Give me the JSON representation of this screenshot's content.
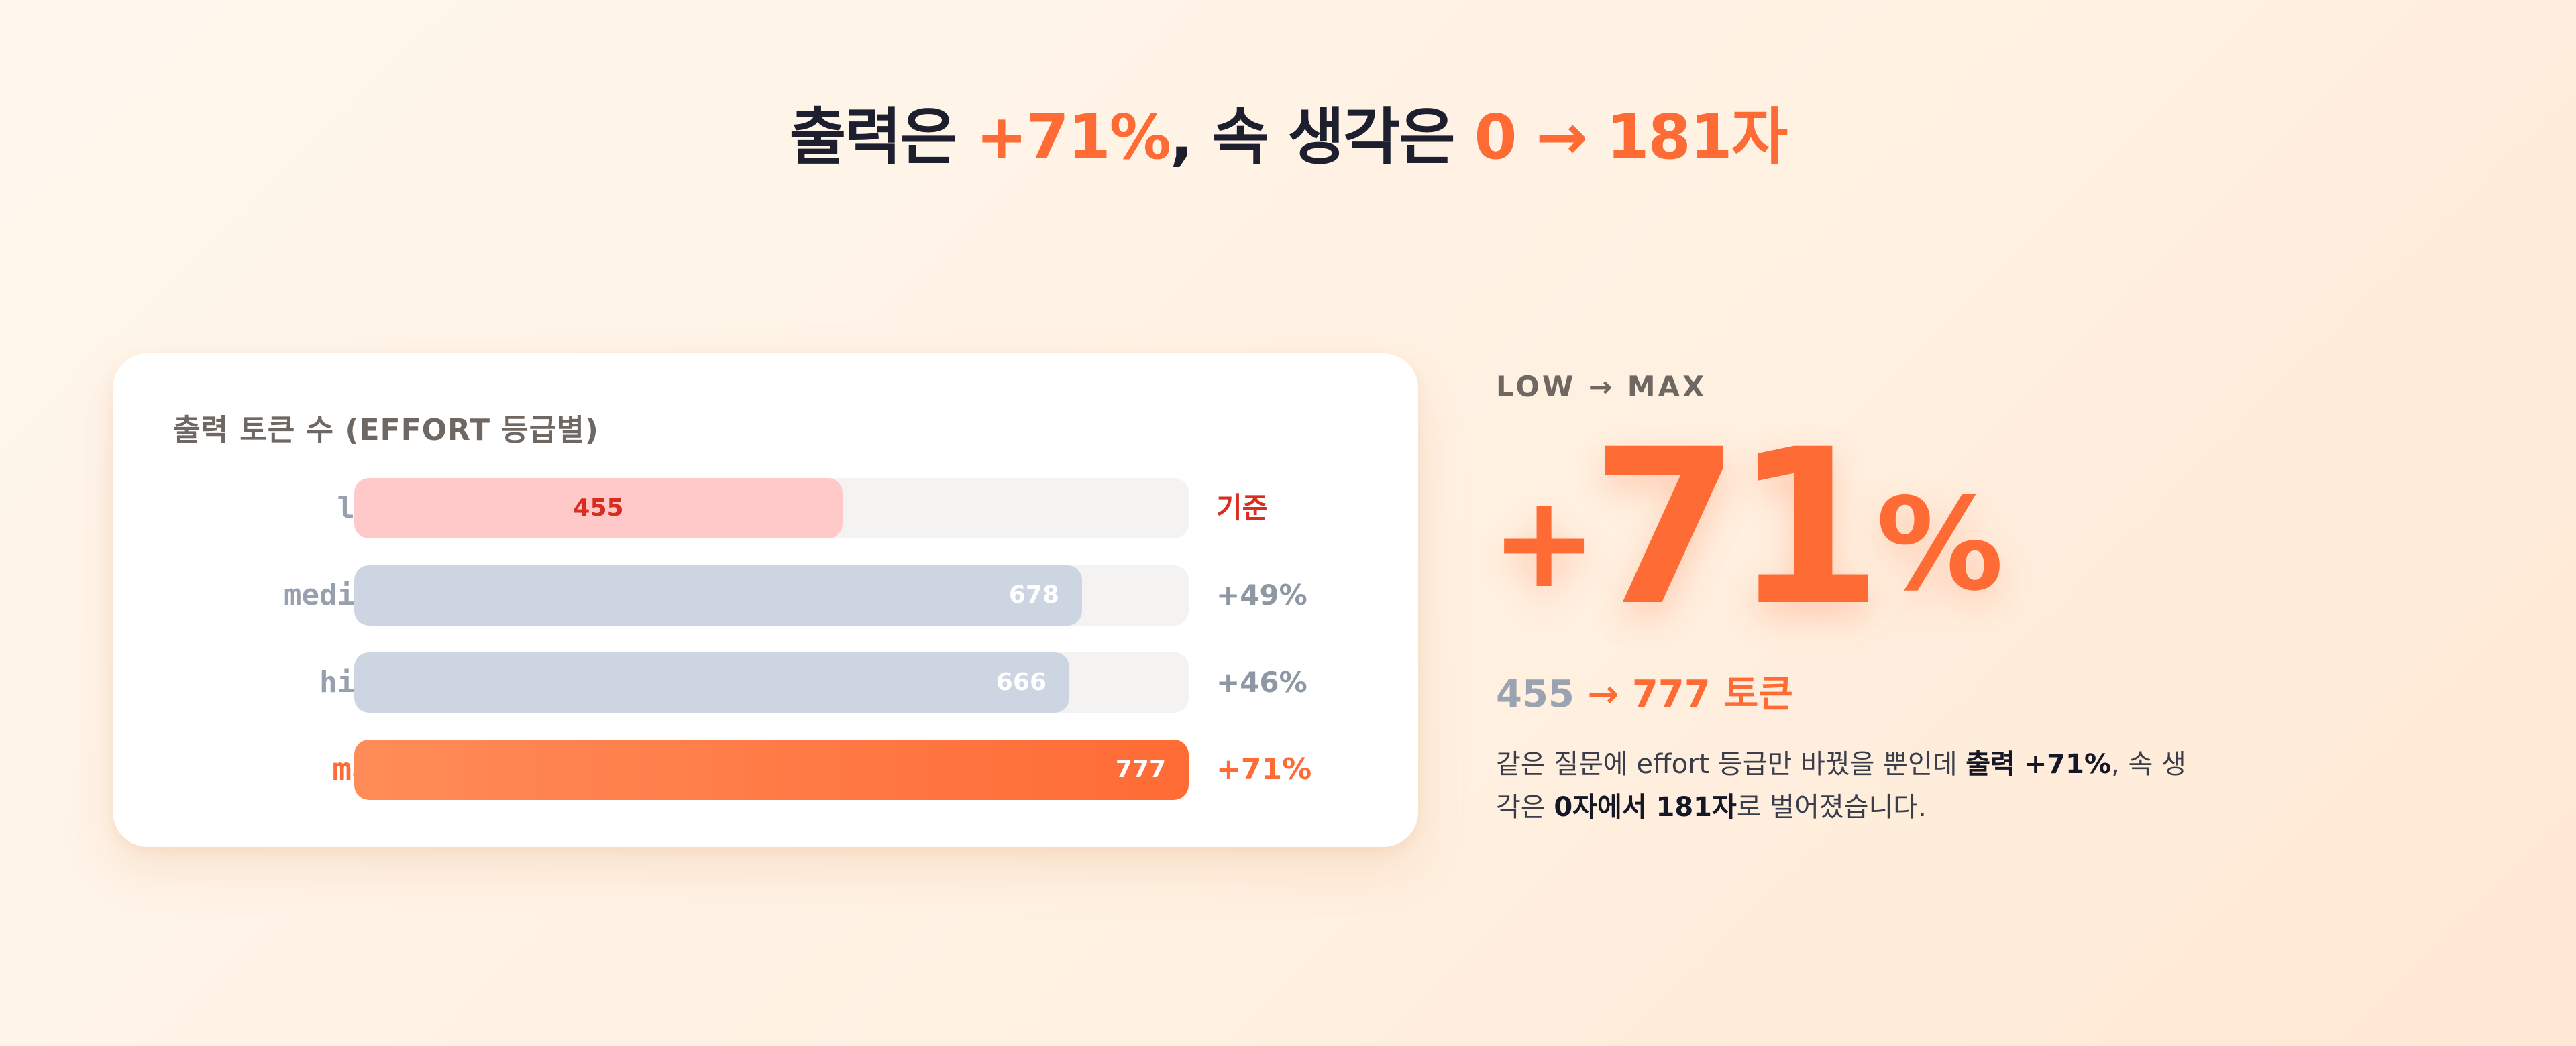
{
  "headline": {
    "part1": "출력은 ",
    "part2": "+71%",
    "part3": ", 속 생각은 ",
    "part4": "0 → 181자"
  },
  "card": {
    "title": "출력 토큰 수 (EFFORT 등급별)"
  },
  "chart_data": {
    "type": "bar",
    "orientation": "horizontal",
    "title": "출력 토큰 수 (EFFORT 등급별)",
    "categories": [
      "low",
      "medium",
      "high",
      "max"
    ],
    "values": [
      455,
      678,
      666,
      777
    ],
    "change_labels": [
      "기준",
      "+49%",
      "+46%",
      "+71%"
    ],
    "xlim": [
      0,
      777
    ],
    "grid": false,
    "colors": [
      "#ffc9c9",
      "#ccd5e1",
      "#ccd5e1",
      "#ff6b35"
    ]
  },
  "summary": {
    "label": "LOW → MAX",
    "plus": "+",
    "number": "71",
    "percent": "%",
    "tokens_from": "455",
    "tokens_arrow": " → ",
    "tokens_to": "777",
    "tokens_unit": "토큰",
    "desc_1": "같은 질문에 effort 등급만 바꿨을 뿐인데 ",
    "desc_2": "출력 +71%",
    "desc_3": ", 속 생각은 ",
    "desc_4": "0자에서 181자",
    "desc_5": "로 벌어졌습니다."
  },
  "colors": {
    "accent": "#ff6b35",
    "baseline_red": "#d92d20",
    "neutral_bar": "#ccd5e1",
    "dark_text": "#1d1f2f"
  }
}
